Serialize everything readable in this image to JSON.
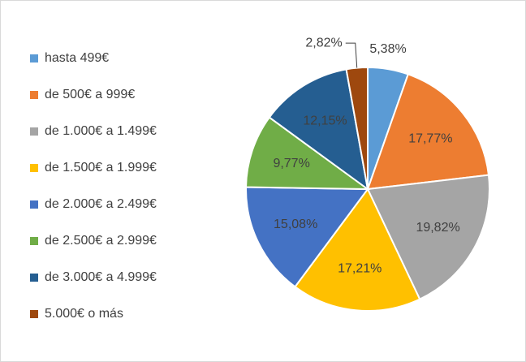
{
  "chart_data": {
    "type": "pie",
    "categories": [
      "hasta 499€",
      "de 500€ a 999€",
      "de 1.000€ a 1.499€",
      "de 1.500€ a 1.999€",
      "de 2.000€ a 2.499€",
      "de 2.500€ a 2.999€",
      "de 3.000€ a 4.999€",
      "5.000€ o más"
    ],
    "values": [
      5.38,
      17.77,
      19.82,
      17.21,
      15.08,
      9.77,
      12.15,
      2.82
    ],
    "value_labels": [
      "5,38%",
      "17,77%",
      "19,82%",
      "17,21%",
      "15,08%",
      "9,77%",
      "12,15%",
      "2,82%"
    ],
    "colors": [
      "#5b9bd5",
      "#ed7d31",
      "#a5a5a5",
      "#ffc000",
      "#4472c4",
      "#70ad47",
      "#255e91",
      "#9e480e"
    ],
    "legend": "left"
  }
}
